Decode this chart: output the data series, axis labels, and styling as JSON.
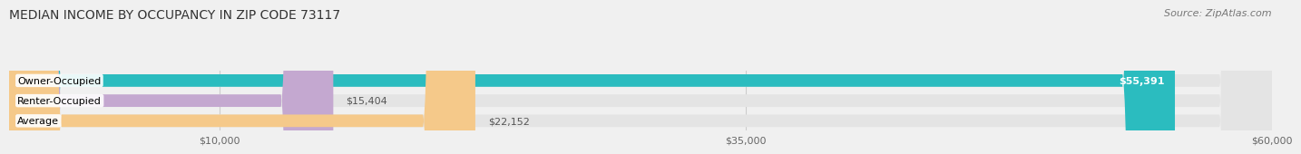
{
  "title": "MEDIAN INCOME BY OCCUPANCY IN ZIP CODE 73117",
  "source": "Source: ZipAtlas.com",
  "categories": [
    "Owner-Occupied",
    "Renter-Occupied",
    "Average"
  ],
  "values": [
    55391,
    15404,
    22152
  ],
  "value_labels": [
    "$55,391",
    "$15,404",
    "$22,152"
  ],
  "bar_colors": [
    "#2bbcbf",
    "#c4a8d0",
    "#f5c98a"
  ],
  "bg_color": "#f0f0f0",
  "bar_bg_color": "#e4e4e4",
  "xlim": [
    0,
    60000
  ],
  "xticks": [
    10000,
    35000,
    60000
  ],
  "xtick_labels": [
    "$10,000",
    "$35,000",
    "$60,000"
  ],
  "title_fontsize": 10,
  "source_fontsize": 8,
  "label_fontsize": 8,
  "value_fontsize": 8
}
